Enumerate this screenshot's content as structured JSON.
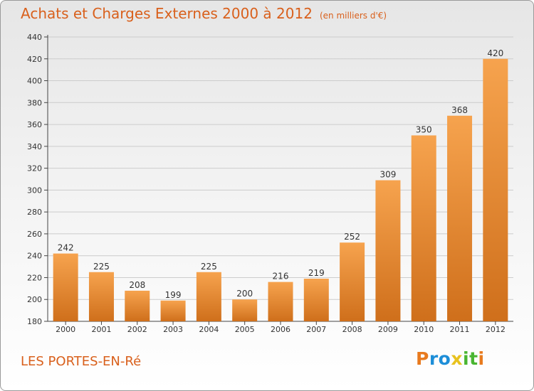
{
  "title": "Achats et Charges Externes 2000 à 2012",
  "subtitle": "(en milliers d'€)",
  "commune": "LES PORTES-EN-Ré",
  "logo": {
    "letters": [
      "P",
      "r",
      "o",
      "x",
      "i",
      "t",
      "i"
    ],
    "colors": [
      "#e87a1e",
      "#1d8ed8",
      "#1d8ed8",
      "#e8c21e",
      "#49b531",
      "#49b531",
      "#e87a1e"
    ]
  },
  "colors": {
    "accent": "#d9601c",
    "bar_light": "#f6a34e",
    "bar_dark": "#cf6f1b",
    "grid": "#cccccc"
  },
  "chart_data": {
    "type": "bar",
    "categories": [
      "2000",
      "2001",
      "2002",
      "2003",
      "2004",
      "2005",
      "2006",
      "2007",
      "2008",
      "2009",
      "2010",
      "2011",
      "2012"
    ],
    "values": [
      242,
      225,
      208,
      199,
      225,
      200,
      216,
      219,
      252,
      309,
      350,
      368,
      420
    ],
    "ylim": [
      180,
      440
    ],
    "yticks": [
      180,
      200,
      220,
      240,
      260,
      280,
      300,
      320,
      340,
      360,
      380,
      400,
      420,
      440
    ],
    "grid": true
  }
}
